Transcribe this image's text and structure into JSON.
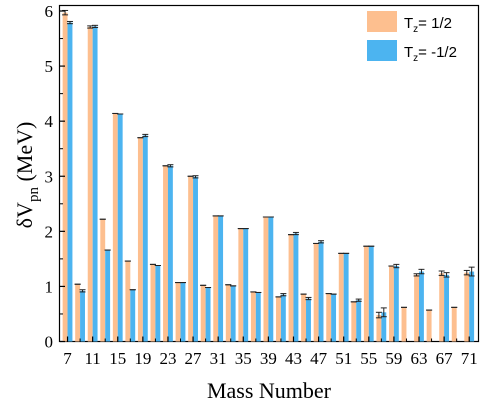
{
  "chart_data": {
    "type": "bar",
    "xlabel": "Mass Number",
    "ylabel_main": "δV",
    "ylabel_sub": "pn",
    "ylabel_unit": " (MeV)",
    "ylim": [
      0,
      6.1
    ],
    "yticks": [
      0,
      1,
      2,
      3,
      4,
      5,
      6
    ],
    "grid": false,
    "legend_position": "top-right",
    "x_tick_labels": [
      "7",
      "11",
      "15",
      "19",
      "23",
      "27",
      "31",
      "35",
      "39",
      "43",
      "47",
      "51",
      "55",
      "59",
      "63",
      "67",
      "71"
    ],
    "x_tick_values": [
      7,
      11,
      15,
      19,
      23,
      27,
      31,
      35,
      39,
      43,
      47,
      51,
      55,
      59,
      63,
      67,
      71
    ],
    "x": [
      7,
      9,
      11,
      13,
      15,
      17,
      19,
      21,
      23,
      25,
      27,
      29,
      31,
      33,
      35,
      37,
      39,
      41,
      43,
      45,
      47,
      49,
      51,
      53,
      55,
      57,
      59,
      61,
      63,
      65,
      67,
      69,
      71
    ],
    "series": [
      {
        "name_main": "T",
        "name_sub": "z",
        "name_rest": "= 1/2",
        "color": "#FDBF8F",
        "values": [
          5.97,
          1.04,
          5.71,
          2.22,
          4.14,
          1.46,
          3.7,
          1.4,
          3.19,
          1.07,
          3.0,
          1.02,
          2.28,
          1.03,
          2.05,
          0.9,
          2.26,
          0.81,
          1.94,
          0.86,
          1.78,
          0.87,
          1.6,
          0.72,
          1.73,
          0.48,
          1.37,
          0.62,
          1.21,
          0.57,
          1.24,
          0.62,
          1.25
        ],
        "errors": [
          0.04,
          0,
          0.02,
          0,
          0,
          0,
          0,
          0,
          0,
          0,
          0,
          0,
          0,
          0,
          0,
          0,
          0,
          0,
          0,
          0,
          0,
          0,
          0,
          0,
          0,
          0.05,
          0,
          0,
          0.02,
          0,
          0.04,
          0,
          0.04
        ]
      },
      {
        "name_main": "T",
        "name_sub": "z",
        "name_rest": "= -1/2",
        "color": "#4CB4F0",
        "values": [
          5.79,
          0.92,
          5.72,
          1.66,
          4.13,
          0.94,
          3.74,
          1.38,
          3.19,
          1.07,
          2.99,
          0.98,
          2.28,
          1.01,
          2.05,
          0.89,
          2.26,
          0.85,
          1.96,
          0.78,
          1.81,
          0.86,
          1.6,
          0.75,
          1.73,
          0.53,
          1.37,
          null,
          1.27,
          null,
          1.21,
          null,
          1.27
        ],
        "errors": [
          0.02,
          0.02,
          0.02,
          0,
          0,
          0,
          0.02,
          0,
          0.02,
          0,
          0.02,
          0,
          0,
          0,
          0,
          0,
          0,
          0.02,
          0.02,
          0.02,
          0.02,
          0,
          0,
          0.02,
          0,
          0.08,
          0.03,
          0,
          0.04,
          0,
          0.04,
          0,
          0.08
        ]
      }
    ]
  }
}
